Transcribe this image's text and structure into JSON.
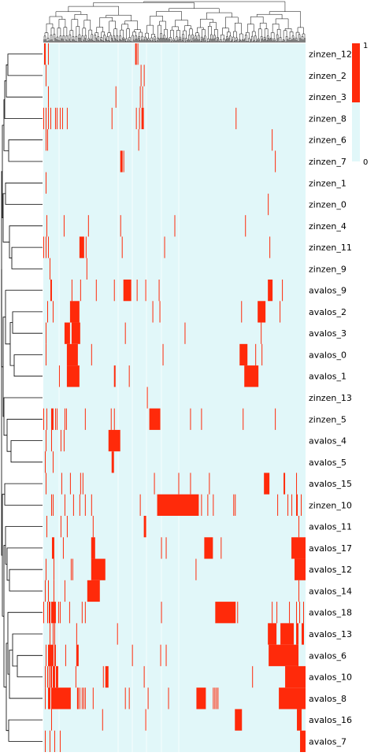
{
  "chart_data": {
    "type": "heatmap",
    "title": "",
    "xlabel": "",
    "ylabel": "",
    "colors": {
      "absent": "#e1f7f9",
      "present": "#ff2a0a",
      "dendrogram": "#000000"
    },
    "colorbar": {
      "min_label": "0",
      "max_label": "1",
      "min": 0,
      "max": 1
    },
    "rows": [
      "zinzen_12",
      "zinzen_2",
      "zinzen_3",
      "zinzen_8",
      "zinzen_6",
      "zinzen_7",
      "zinzen_1",
      "zinzen_0",
      "zinzen_4",
      "zinzen_11",
      "zinzen_9",
      "avalos_9",
      "avalos_2",
      "avalos_3",
      "avalos_0",
      "avalos_1",
      "zinzen_13",
      "zinzen_5",
      "avalos_4",
      "avalos_5",
      "avalos_15",
      "zinzen_10",
      "avalos_11",
      "avalos_17",
      "avalos_12",
      "avalos_14",
      "avalos_18",
      "avalos_13",
      "avalos_6",
      "avalos_10",
      "avalos_8",
      "avalos_16",
      "avalos_7"
    ],
    "column_count": 334,
    "present_columns": [
      [
        1,
        2,
        6,
        117,
        118,
        120
      ],
      [
        3,
        124,
        128
      ],
      [
        6,
        92,
        123,
        126
      ],
      [
        0,
        3,
        6,
        9,
        15,
        17,
        21,
        24,
        30,
        87,
        118,
        122,
        125,
        126,
        127,
        245
      ],
      [
        3,
        5,
        121,
        291
      ],
      [
        98,
        99,
        100,
        102,
        295
      ],
      [
        3
      ],
      [
        286
      ],
      [
        4,
        26,
        57,
        98,
        167,
        257
      ],
      [
        0,
        3,
        6,
        46,
        47,
        48,
        49,
        50,
        51,
        54,
        100,
        154,
        288
      ],
      [
        8,
        55
      ],
      [
        9,
        10,
        36,
        47,
        67,
        90,
        102,
        103,
        104,
        105,
        106,
        107,
        108,
        109,
        110,
        111,
        119,
        130,
        147,
        286,
        287,
        288,
        289,
        290,
        291,
        304
      ],
      [
        5,
        12,
        34,
        35,
        36,
        37,
        38,
        39,
        40,
        41,
        42,
        43,
        44,
        45,
        139,
        148,
        252,
        273,
        274,
        275,
        276,
        277,
        278,
        279,
        280,
        281,
        282,
        301
      ],
      [
        3,
        27,
        28,
        29,
        30,
        31,
        32,
        33,
        36,
        37,
        38,
        39,
        40,
        41,
        42,
        43,
        44,
        45,
        46,
        104,
        180,
        277
      ],
      [
        3,
        30,
        31,
        32,
        33,
        34,
        35,
        36,
        37,
        38,
        39,
        40,
        41,
        42,
        43,
        61,
        152,
        250,
        251,
        252,
        253,
        254,
        255,
        256,
        257,
        258,
        259,
        270,
        278
      ],
      [
        20,
        30,
        31,
        32,
        33,
        34,
        35,
        36,
        37,
        38,
        39,
        40,
        41,
        42,
        43,
        44,
        45,
        90,
        91,
        109,
        256,
        257,
        258,
        259,
        260,
        261,
        262,
        263,
        264,
        265,
        266,
        267,
        268,
        269,
        270,
        271,
        272,
        273
      ],
      [
        132
      ],
      [
        0,
        4,
        10,
        11,
        12,
        15,
        17,
        27,
        29,
        53,
        86,
        90,
        135,
        136,
        137,
        138,
        139,
        140,
        141,
        142,
        143,
        144,
        145,
        146,
        147,
        148,
        187,
        201,
        254,
        295
      ],
      [
        3,
        10,
        22,
        26,
        83,
        84,
        85,
        86,
        87,
        88,
        89,
        90,
        91,
        92,
        93,
        94,
        95,
        96,
        97
      ],
      [
        2,
        12,
        87,
        88,
        89
      ],
      [
        3,
        23,
        34,
        47,
        50,
        141,
        172,
        187,
        211,
        281,
        282,
        283,
        284,
        285,
        286,
        287,
        306,
        307,
        322
      ],
      [
        10,
        12,
        27,
        38,
        46,
        53,
        61,
        123,
        145,
        146,
        147,
        148,
        149,
        150,
        151,
        152,
        153,
        154,
        155,
        156,
        157,
        158,
        159,
        160,
        161,
        162,
        163,
        164,
        165,
        166,
        167,
        168,
        169,
        170,
        171,
        172,
        173,
        174,
        175,
        176,
        177,
        178,
        179,
        180,
        181,
        182,
        183,
        184,
        185,
        186,
        187,
        188,
        189,
        190,
        191,
        192,
        193,
        194,
        195,
        196,
        197,
        201,
        209,
        216,
        242,
        244,
        298,
        311,
        316,
        322,
        323,
        328
      ],
      [
        4,
        22,
        30,
        63,
        128,
        129,
        130,
        325
      ],
      [
        11,
        12,
        13,
        25,
        61,
        62,
        63,
        64,
        65,
        150,
        156,
        205,
        206,
        207,
        208,
        209,
        210,
        211,
        212,
        213,
        214,
        215,
        226,
        316,
        317,
        318,
        319,
        320,
        321,
        322,
        323,
        324,
        325,
        326,
        327,
        328,
        329,
        330,
        331,
        332,
        333
      ],
      [
        3,
        13,
        35,
        37,
        61,
        62,
        63,
        64,
        65,
        66,
        67,
        68,
        69,
        70,
        71,
        72,
        73,
        74,
        75,
        76,
        77,
        78,
        194,
        320,
        321,
        322,
        323,
        324,
        325,
        326,
        327,
        328,
        329,
        330,
        331,
        332,
        333
      ],
      [
        2,
        6,
        13,
        27,
        56,
        57,
        58,
        59,
        60,
        61,
        62,
        63,
        64,
        65,
        66,
        67,
        68,
        69,
        70,
        71,
        325
      ],
      [
        0,
        5,
        7,
        8,
        10,
        11,
        12,
        13,
        14,
        15,
        19,
        21,
        33,
        49,
        53,
        150,
        219,
        220,
        221,
        222,
        223,
        224,
        225,
        226,
        227,
        228,
        229,
        230,
        231,
        232,
        233,
        234,
        235,
        236,
        237,
        238,
        239,
        240,
        241,
        242,
        243,
        244,
        247,
        291,
        297,
        313,
        322,
        326,
        331
      ],
      [
        8,
        12,
        14,
        42,
        94,
        286,
        287,
        288,
        289,
        290,
        291,
        292,
        293,
        294,
        295,
        296,
        302,
        303,
        304,
        305,
        306,
        307,
        308,
        309,
        310,
        311,
        312,
        313,
        314,
        315,
        316,
        317,
        318,
        322,
        323,
        324,
        329,
        330,
        331
      ],
      [
        3,
        6,
        7,
        8,
        9,
        10,
        11,
        12,
        14,
        15,
        28,
        42,
        43,
        44,
        113,
        149,
        156,
        287,
        288,
        289,
        290,
        291,
        292,
        293,
        294,
        295,
        296,
        297,
        298,
        299,
        300,
        301,
        302,
        303,
        304,
        305,
        306,
        307,
        308,
        309,
        310,
        311,
        312,
        313,
        314,
        315,
        316,
        317,
        318,
        319,
        320,
        321,
        322,
        323,
        324
      ],
      [
        2,
        5,
        7,
        9,
        10,
        12,
        13,
        14,
        16,
        17,
        18,
        41,
        76,
        79,
        80,
        81,
        82,
        128,
        266,
        308,
        309,
        310,
        311,
        312,
        313,
        314,
        315,
        316,
        317,
        318,
        319,
        320,
        321,
        322,
        323,
        324,
        325,
        326,
        327,
        328,
        329,
        330,
        331,
        332,
        333
      ],
      [
        2,
        6,
        7,
        8,
        10,
        11,
        12,
        13,
        14,
        15,
        16,
        17,
        18,
        19,
        20,
        21,
        22,
        23,
        24,
        25,
        26,
        27,
        28,
        29,
        30,
        31,
        32,
        33,
        34,
        43,
        44,
        46,
        49,
        51,
        53,
        63,
        104,
        109,
        133,
        159,
        195,
        196,
        197,
        198,
        199,
        200,
        201,
        202,
        203,
        204,
        205,
        206,
        216,
        218,
        220,
        222,
        300,
        301,
        302,
        303,
        304,
        305,
        306,
        307,
        308,
        309,
        310,
        311,
        312,
        313,
        314,
        315,
        316,
        317,
        318,
        319,
        320,
        321,
        322,
        323,
        324,
        325,
        326,
        327,
        328,
        329,
        330,
        331,
        332,
        333
      ],
      [
        10,
        75,
        130,
        244,
        245,
        246,
        247,
        248,
        249,
        250,
        251,
        252,
        323,
        324,
        325,
        326,
        327,
        328
      ],
      [
        2,
        8,
        14,
        21,
        327,
        328,
        329,
        330,
        331,
        332,
        333
      ]
    ]
  }
}
